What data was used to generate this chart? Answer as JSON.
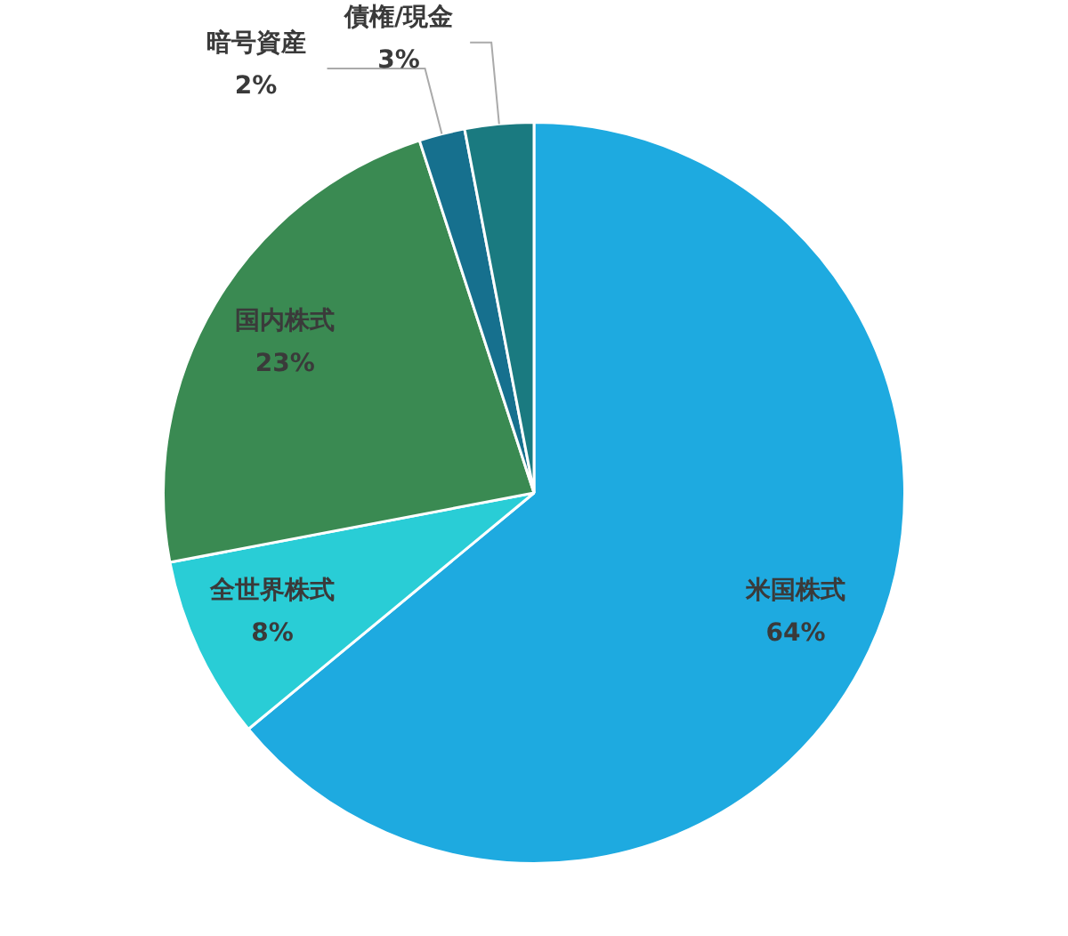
{
  "chart_data": {
    "type": "pie",
    "categories": [
      "米国株式",
      "全世界株式",
      "国内株式",
      "暗号資産",
      "債権/現金"
    ],
    "values": [
      64,
      8,
      23,
      2,
      3
    ],
    "colors": [
      "#1eaae0",
      "#29cdd6",
      "#3a8a52",
      "#16708e",
      "#1a7a80"
    ],
    "value_labels": [
      "64%",
      "8%",
      "23%",
      "2%",
      "3%"
    ],
    "legend": false
  }
}
